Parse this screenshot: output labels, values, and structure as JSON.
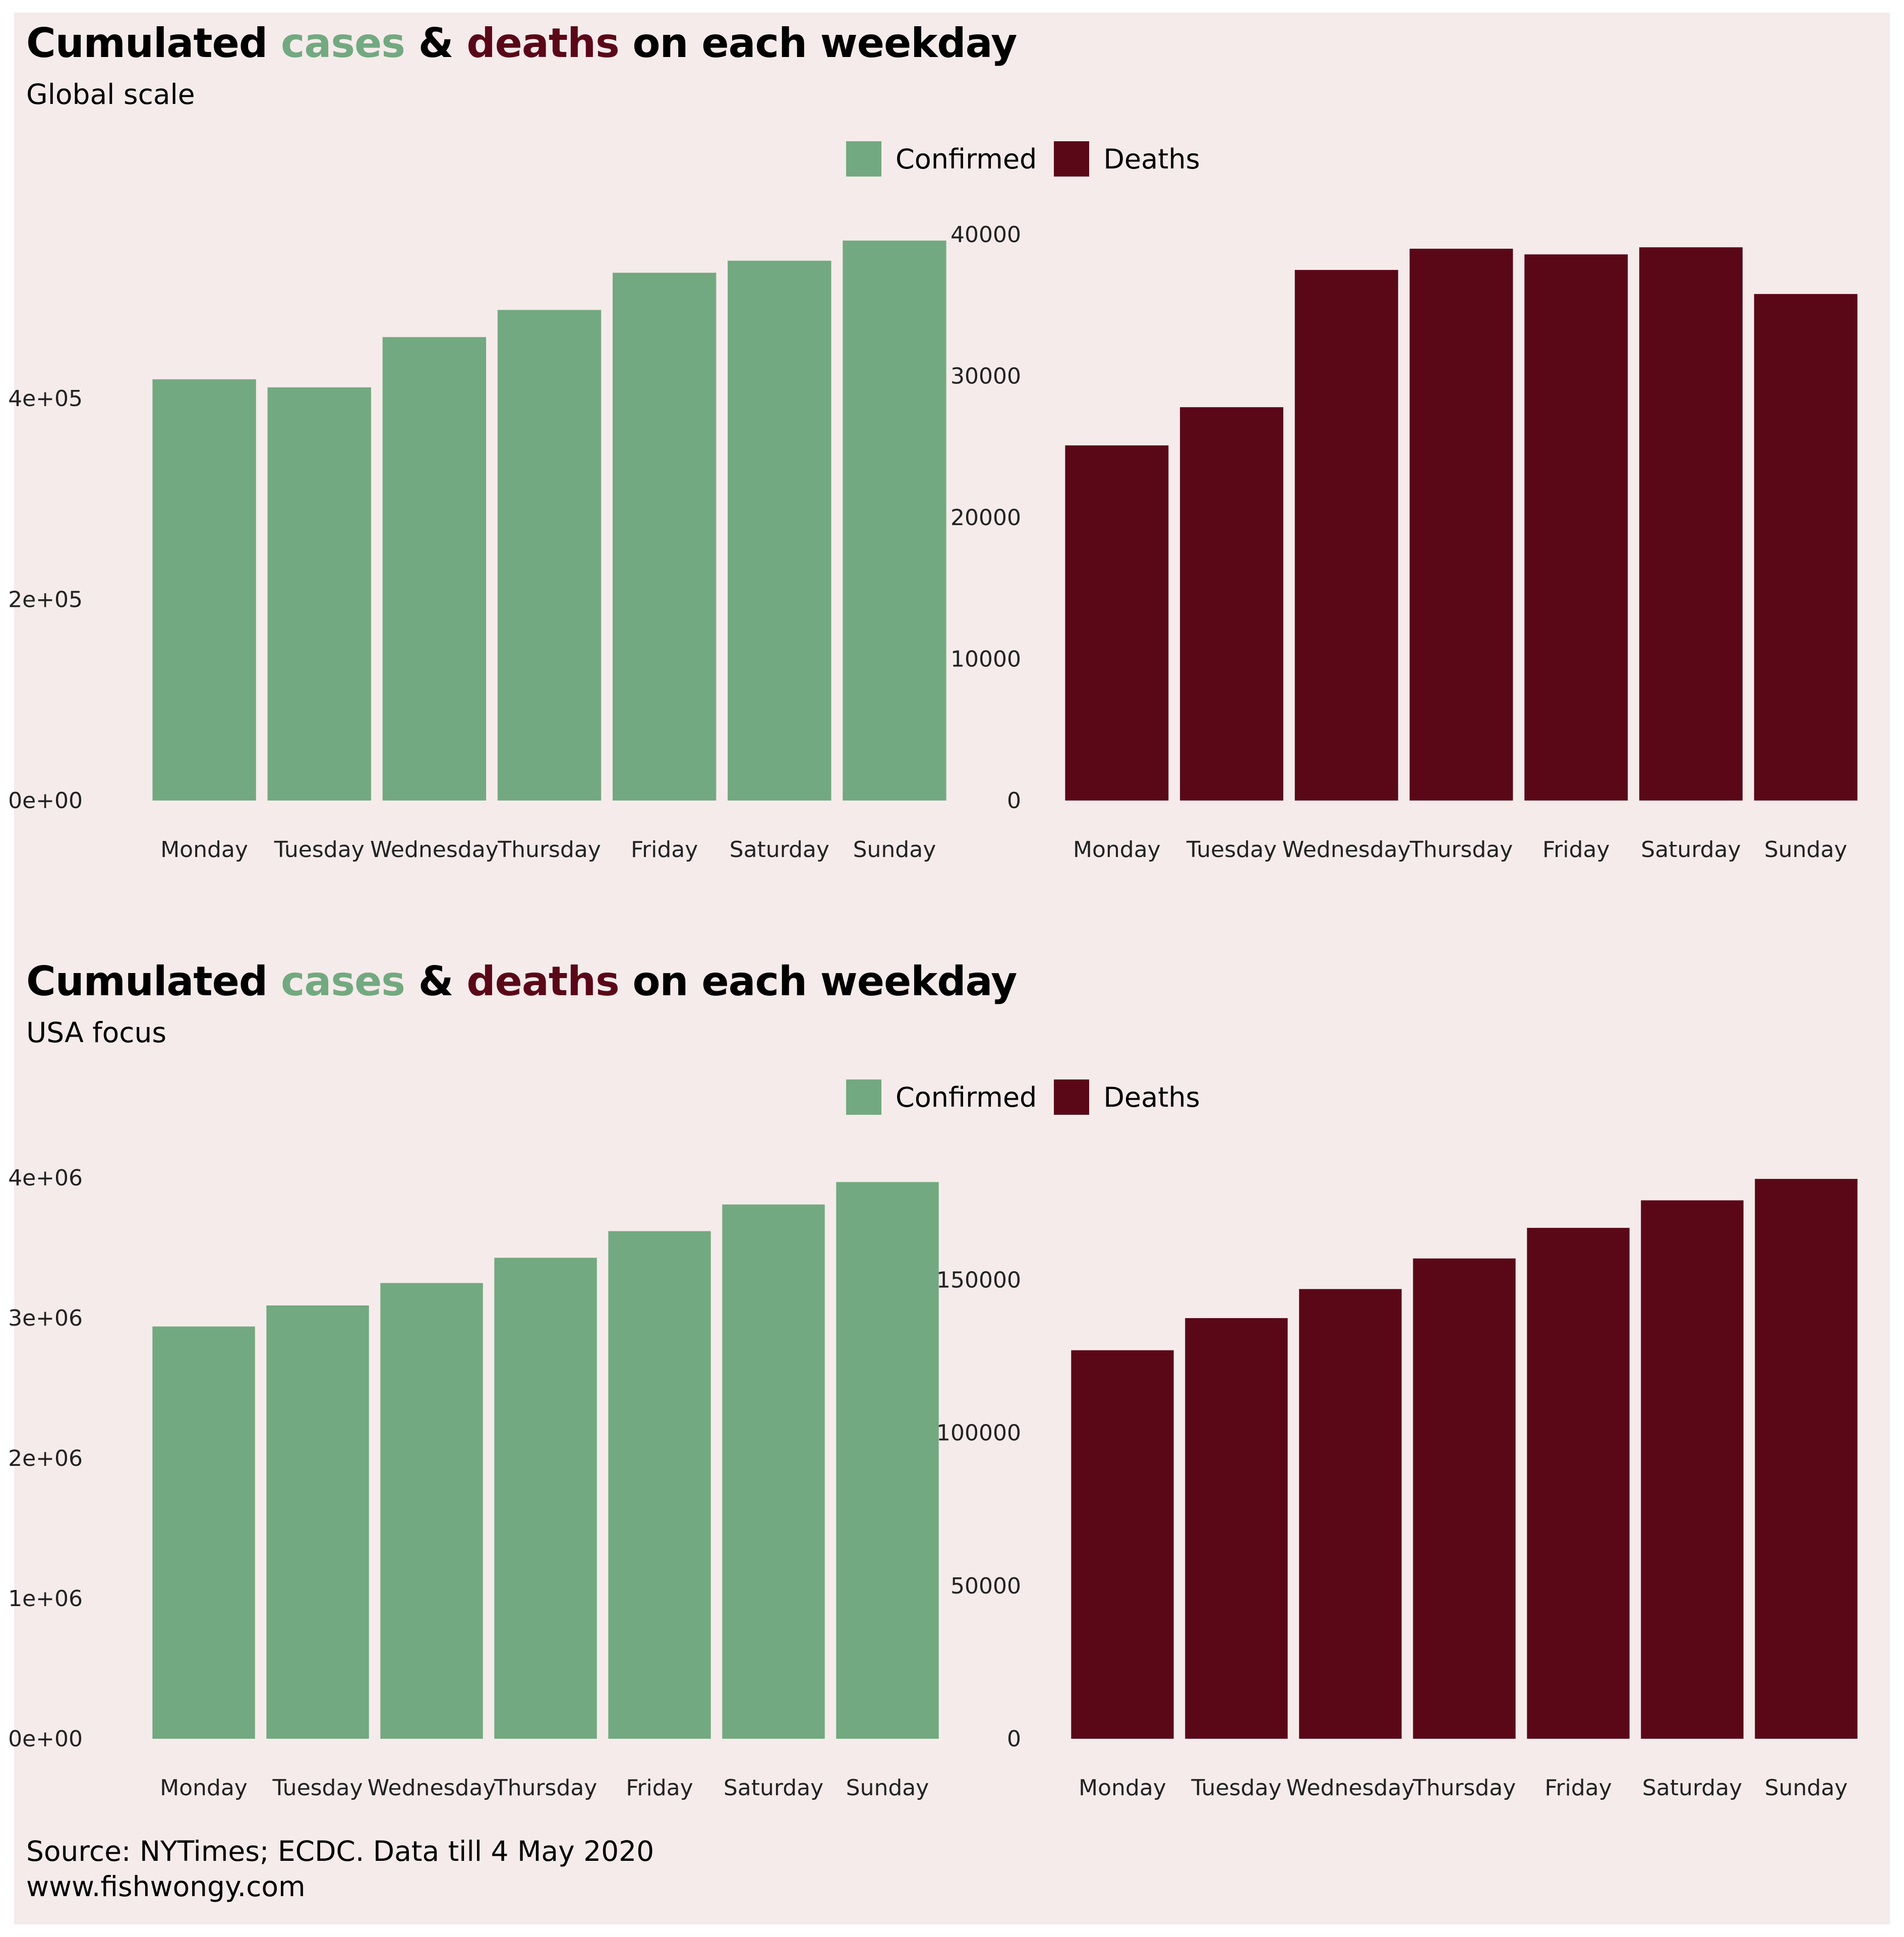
{
  "colors": {
    "confirmed": "#73a980",
    "deaths": "#5a0818",
    "background": "#f5ebeb"
  },
  "panels": [
    {
      "title": {
        "part1": "Cumulated ",
        "cases": "cases",
        "amp": " & ",
        "deaths": "deaths",
        "part2": " on each weekday"
      },
      "subtitle": "Global scale",
      "legend": {
        "confirmed": "Confirmed",
        "deaths": "Deaths"
      }
    },
    {
      "title": {
        "part1": "Cumulated ",
        "cases": "cases",
        "amp": " & ",
        "deaths": "deaths",
        "part2": " on each weekday"
      },
      "subtitle": "USA focus",
      "legend": {
        "confirmed": "Confirmed",
        "deaths": "Deaths"
      }
    }
  ],
  "caption": {
    "line1": "Source: NYTimes; ECDC. Data till 4 May 2020",
    "line2": "www.fishwongy.com"
  },
  "chart_data": [
    {
      "type": "bar",
      "categories": [
        "Monday",
        "Tuesday",
        "Wednesday",
        "Thursday",
        "Friday",
        "Saturday",
        "Sunday"
      ],
      "series": [
        {
          "name": "Confirmed",
          "values": [
            419000,
            411000,
            461000,
            488000,
            525000,
            537000,
            557000
          ]
        }
      ],
      "yticks": [
        "0e+00",
        "2e+05",
        "4e+05"
      ],
      "yticks_values": [
        0,
        200000,
        400000
      ],
      "ylim": [
        0,
        567000
      ]
    },
    {
      "type": "bar",
      "categories": [
        "Monday",
        "Tuesday",
        "Wednesday",
        "Thursday",
        "Friday",
        "Saturday",
        "Sunday"
      ],
      "series": [
        {
          "name": "Deaths",
          "values": [
            25100,
            27800,
            37500,
            39000,
            38600,
            39100,
            35800
          ]
        }
      ],
      "yticks": [
        "0",
        "10000",
        "20000",
        "30000",
        "40000"
      ],
      "yticks_values": [
        0,
        10000,
        20000,
        30000,
        40000
      ],
      "ylim": [
        0,
        40000
      ]
    },
    {
      "type": "bar",
      "categories": [
        "Monday",
        "Tuesday",
        "Wednesday",
        "Thursday",
        "Friday",
        "Saturday",
        "Sunday"
      ],
      "series": [
        {
          "name": "Confirmed",
          "values": [
            2940000,
            3090000,
            3250000,
            3430000,
            3620000,
            3810000,
            3970000
          ]
        }
      ],
      "yticks": [
        "0e+00",
        "1e+06",
        "2e+06",
        "3e+06",
        "4e+06"
      ],
      "yticks_values": [
        0,
        1000000,
        2000000,
        3000000,
        4000000
      ],
      "ylim": [
        0,
        4000000
      ]
    },
    {
      "type": "bar",
      "categories": [
        "Monday",
        "Tuesday",
        "Wednesday",
        "Thursday",
        "Friday",
        "Saturday",
        "Sunday"
      ],
      "series": [
        {
          "name": "Deaths",
          "values": [
            127000,
            137500,
            147000,
            157000,
            167000,
            176000,
            183000
          ]
        }
      ],
      "yticks": [
        "0",
        "50000",
        "100000",
        "150000"
      ],
      "yticks_values": [
        0,
        50000,
        100000,
        150000
      ],
      "ylim": [
        0,
        185000
      ]
    }
  ]
}
